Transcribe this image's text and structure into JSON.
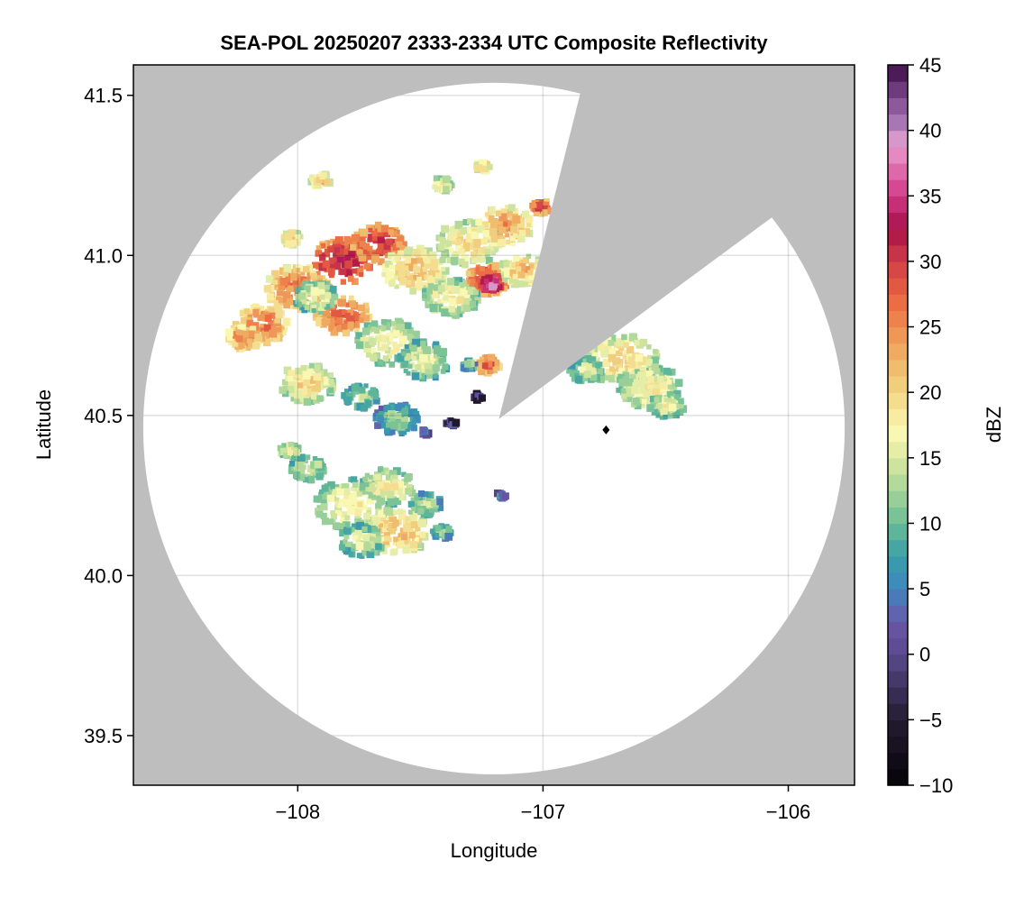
{
  "chart_data": {
    "type": "heatmap",
    "title": "SEA-POL 20250207 2333-2334 UTC Composite Reflectivity",
    "xlabel": "Longitude",
    "ylabel": "Latitude",
    "xlim": [
      -108.67,
      -105.73
    ],
    "ylim": [
      39.345,
      41.595
    ],
    "xticks": [
      -108,
      -107,
      -106
    ],
    "xtick_labels": [
      "−108",
      "−107",
      "−106"
    ],
    "yticks": [
      39.5,
      40.0,
      40.5,
      41.0,
      41.5
    ],
    "ytick_labels": [
      "39.5",
      "40.0",
      "40.5",
      "41.0",
      "41.5"
    ],
    "grid": true,
    "background_color": "#bebebe",
    "coverage_color": "#ffffff",
    "radar_coverage": {
      "center": [
        -107.2,
        40.459
      ],
      "radius_lon": 1.43,
      "radius_lat": 1.08
    },
    "blocked_sector": [
      [
        -107.18,
        40.489
      ],
      [
        -106.842,
        41.525
      ],
      [
        -106.787,
        41.595
      ],
      [
        -105.73,
        41.595
      ],
      [
        -105.73,
        41.0
      ],
      [
        -106.061,
        41.122
      ]
    ],
    "marker": {
      "lon": -106.743,
      "lat": 40.455,
      "shape": "diamond",
      "color": "#000000"
    },
    "colorbar": {
      "label": "dBZ",
      "range": [
        -10,
        45
      ],
      "ticks": [
        -10,
        -5,
        0,
        5,
        10,
        15,
        20,
        25,
        30,
        35,
        40,
        45
      ],
      "tick_labels": [
        "−10",
        "−5",
        "0",
        "5",
        "10",
        "15",
        "20",
        "25",
        "30",
        "35",
        "40",
        "45"
      ],
      "stops": [
        [
          -10,
          "#050308"
        ],
        [
          -5,
          "#231c30"
        ],
        [
          0,
          "#5a4a8e"
        ],
        [
          2.5,
          "#6a58a8"
        ],
        [
          5,
          "#3f86c0"
        ],
        [
          7.5,
          "#3a9fa8"
        ],
        [
          10,
          "#6bbd95"
        ],
        [
          12.5,
          "#a8d59a"
        ],
        [
          15,
          "#dbe8a0"
        ],
        [
          17,
          "#fbf9b5"
        ],
        [
          20,
          "#f2d585"
        ],
        [
          22.5,
          "#efb566"
        ],
        [
          25,
          "#ef8c50"
        ],
        [
          27.5,
          "#e8623f"
        ],
        [
          30,
          "#d13e47"
        ],
        [
          32.5,
          "#a8104a"
        ],
        [
          35,
          "#cf3a86"
        ],
        [
          37.5,
          "#e27ab5"
        ],
        [
          39,
          "#e6a3d0"
        ],
        [
          40,
          "#b784c0"
        ],
        [
          42.5,
          "#7e4a90"
        ],
        [
          45,
          "#3c0a45"
        ]
      ]
    },
    "echoes": [
      {
        "lon": -107.815,
        "lat": 40.982,
        "r": 0.13,
        "dbz": 32
      },
      {
        "lon": -107.668,
        "lat": 41.038,
        "r": 0.11,
        "dbz": 30
      },
      {
        "lon": -107.998,
        "lat": 40.897,
        "r": 0.13,
        "dbz": 26
      },
      {
        "lon": -108.145,
        "lat": 40.785,
        "r": 0.11,
        "dbz": 26
      },
      {
        "lon": -108.218,
        "lat": 40.742,
        "r": 0.07,
        "dbz": 25
      },
      {
        "lon": -107.521,
        "lat": 40.954,
        "r": 0.13,
        "dbz": 22
      },
      {
        "lon": -107.301,
        "lat": 41.038,
        "r": 0.13,
        "dbz": 20
      },
      {
        "lon": -107.154,
        "lat": 41.094,
        "r": 0.11,
        "dbz": 24
      },
      {
        "lon": -107.228,
        "lat": 40.925,
        "r": 0.09,
        "dbz": 30
      },
      {
        "lon": -107.209,
        "lat": 40.911,
        "r": 0.04,
        "dbz": 38
      },
      {
        "lon": -107.081,
        "lat": 40.954,
        "r": 0.09,
        "dbz": 22
      },
      {
        "lon": -107.374,
        "lat": 40.869,
        "r": 0.11,
        "dbz": 18
      },
      {
        "lon": -107.815,
        "lat": 40.813,
        "r": 0.11,
        "dbz": 28
      },
      {
        "lon": -107.631,
        "lat": 40.728,
        "r": 0.13,
        "dbz": 18
      },
      {
        "lon": -107.484,
        "lat": 40.672,
        "r": 0.11,
        "dbz": 16
      },
      {
        "lon": -107.925,
        "lat": 40.869,
        "r": 0.09,
        "dbz": 17
      },
      {
        "lon": -107.906,
        "lat": 41.235,
        "r": 0.04,
        "dbz": 22
      },
      {
        "lon": -107.411,
        "lat": 41.221,
        "r": 0.04,
        "dbz": 20
      },
      {
        "lon": -107.246,
        "lat": 41.277,
        "r": 0.03,
        "dbz": 22
      },
      {
        "lon": -108.024,
        "lat": 41.052,
        "r": 0.04,
        "dbz": 22
      },
      {
        "lon": -107.007,
        "lat": 41.151,
        "r": 0.04,
        "dbz": 30
      },
      {
        "lon": -107.228,
        "lat": 40.658,
        "r": 0.05,
        "dbz": 28
      },
      {
        "lon": -107.301,
        "lat": 40.658,
        "r": 0.03,
        "dbz": 12
      },
      {
        "lon": -106.677,
        "lat": 40.672,
        "r": 0.15,
        "dbz": 20
      },
      {
        "lon": -106.567,
        "lat": 40.587,
        "r": 0.13,
        "dbz": 18
      },
      {
        "lon": -106.824,
        "lat": 40.644,
        "r": 0.07,
        "dbz": 16
      },
      {
        "lon": -106.494,
        "lat": 40.531,
        "r": 0.07,
        "dbz": 17
      },
      {
        "lon": -107.961,
        "lat": 40.601,
        "r": 0.11,
        "dbz": 20
      },
      {
        "lon": -107.741,
        "lat": 40.559,
        "r": 0.07,
        "dbz": 14
      },
      {
        "lon": -107.594,
        "lat": 40.489,
        "r": 0.09,
        "dbz": 12
      },
      {
        "lon": -107.961,
        "lat": 40.334,
        "r": 0.07,
        "dbz": 16
      },
      {
        "lon": -107.778,
        "lat": 40.221,
        "r": 0.15,
        "dbz": 18
      },
      {
        "lon": -107.594,
        "lat": 40.137,
        "r": 0.13,
        "dbz": 22
      },
      {
        "lon": -107.631,
        "lat": 40.277,
        "r": 0.11,
        "dbz": 18
      },
      {
        "lon": -107.484,
        "lat": 40.221,
        "r": 0.07,
        "dbz": 14
      },
      {
        "lon": -107.741,
        "lat": 40.108,
        "r": 0.09,
        "dbz": 16
      },
      {
        "lon": -107.411,
        "lat": 40.137,
        "r": 0.04,
        "dbz": 14
      },
      {
        "lon": -108.035,
        "lat": 40.39,
        "r": 0.04,
        "dbz": 18
      },
      {
        "lon": -107.374,
        "lat": 40.475,
        "r": 0.02,
        "dbz": 4
      },
      {
        "lon": -107.484,
        "lat": 40.446,
        "r": 0.02,
        "dbz": 6
      },
      {
        "lon": -107.264,
        "lat": 40.559,
        "r": 0.02,
        "dbz": 2
      },
      {
        "lon": -107.172,
        "lat": 40.249,
        "r": 0.02,
        "dbz": 8
      }
    ]
  }
}
